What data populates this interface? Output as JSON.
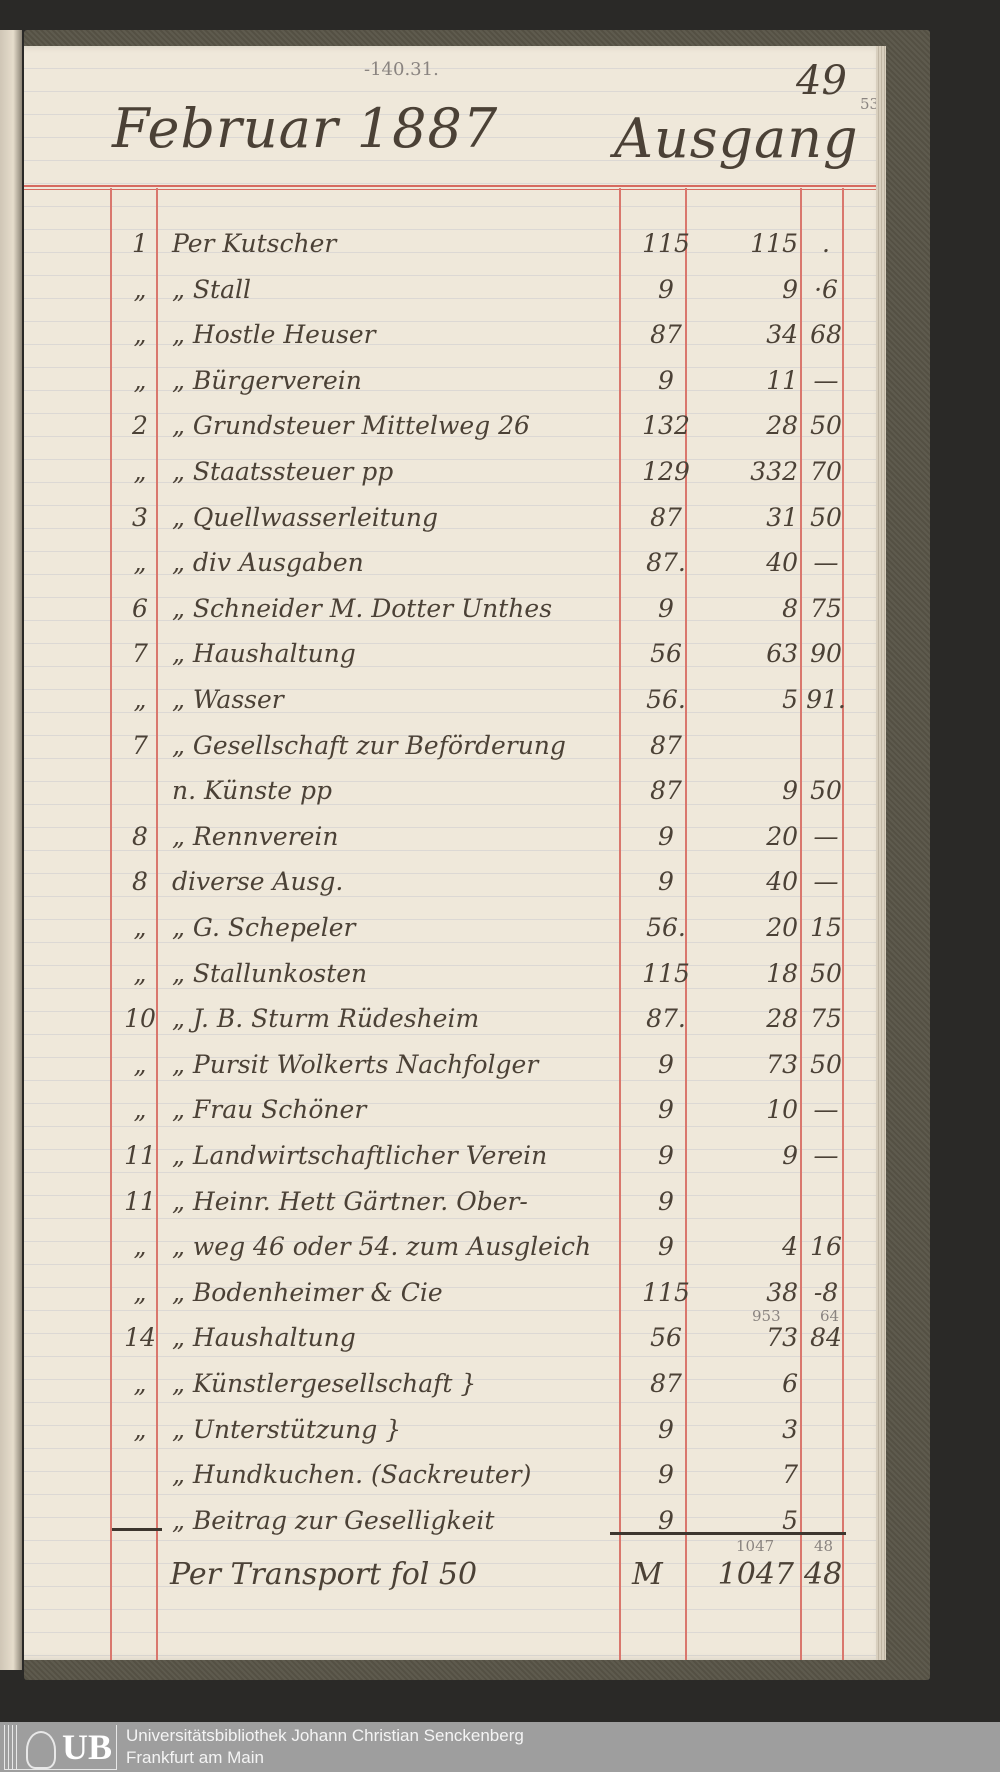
{
  "header": {
    "month_year": "Februar 1887",
    "section": "Ausgang",
    "pencil_note": "-140.31.",
    "page_number": "49",
    "page_number_pencil": "53"
  },
  "ledger": {
    "rows": [
      {
        "date": "1",
        "description": "Per Kutscher",
        "folio": "115",
        "mark": "115",
        "pfennig": "."
      },
      {
        "date": "„",
        "description": "„ Stall",
        "folio": "9",
        "mark": "9",
        "pfennig": "·6"
      },
      {
        "date": "„",
        "description": "„ Hostle Heuser",
        "folio": "87",
        "mark": "34",
        "pfennig": "68"
      },
      {
        "date": "„",
        "description": "„ Bürgerverein",
        "folio": "9",
        "mark": "11",
        "pfennig": "—"
      },
      {
        "date": "2",
        "description": "„ Grundsteuer Mittelweg 26",
        "folio": "132",
        "mark": "28",
        "pfennig": "50"
      },
      {
        "date": "„",
        "description": "„ Staatssteuer pp",
        "folio": "129",
        "mark": "332",
        "pfennig": "70"
      },
      {
        "date": "3",
        "description": "„ Quellwasserleitung",
        "folio": "87",
        "mark": "31",
        "pfennig": "50"
      },
      {
        "date": "„",
        "description": "„ div Ausgaben",
        "folio": "87.",
        "mark": "40",
        "pfennig": "—"
      },
      {
        "date": "6",
        "description": "„ Schneider M. Dotter Unthes",
        "folio": "9",
        "mark": "8",
        "pfennig": "75"
      },
      {
        "date": "7",
        "description": "„ Haushaltung",
        "folio": "56",
        "mark": "63",
        "pfennig": "90"
      },
      {
        "date": "„",
        "description": "„ Wasser",
        "folio": "56.",
        "mark": "5",
        "pfennig": "91."
      },
      {
        "date": "7",
        "description": "„ Gesellschaft zur Beförderung",
        "folio": "87",
        "mark": "",
        "pfennig": ""
      },
      {
        "date": "",
        "description": "n. Künste pp",
        "folio": "87",
        "mark": "9",
        "pfennig": "50"
      },
      {
        "date": "8",
        "description": "„ Rennverein",
        "folio": "9",
        "mark": "20",
        "pfennig": "—"
      },
      {
        "date": "8",
        "description": "diverse Ausg.",
        "folio": "9",
        "mark": "40",
        "pfennig": "—"
      },
      {
        "date": "„",
        "description": "„ G. Schepeler",
        "folio": "56.",
        "mark": "20",
        "pfennig": "15"
      },
      {
        "date": "„",
        "description": "„ Stallunkosten",
        "folio": "115",
        "mark": "18",
        "pfennig": "50"
      },
      {
        "date": "10",
        "description": "„ J. B. Sturm Rüdesheim",
        "folio": "87.",
        "mark": "28",
        "pfennig": "75"
      },
      {
        "date": "„",
        "description": "„ Pursit Wolkerts Nachfolger",
        "folio": "9",
        "mark": "73",
        "pfennig": "50"
      },
      {
        "date": "„",
        "description": "„ Frau Schöner",
        "folio": "9",
        "mark": "10",
        "pfennig": "—"
      },
      {
        "date": "11",
        "description": "„ Landwirtschaftlicher Verein",
        "folio": "9",
        "mark": "9",
        "pfennig": "—"
      },
      {
        "date": "11",
        "description": "„ Heinr. Hett Gärtner. Ober-",
        "folio": "9",
        "mark": "",
        "pfennig": ""
      },
      {
        "date": "„",
        "description": "„ weg 46 oder 54. zum Ausgleich",
        "folio": "9",
        "mark": "4",
        "pfennig": "16"
      },
      {
        "date": "„",
        "description": "„ Bodenheimer & Cie",
        "folio": "115",
        "mark": "38",
        "pfennig": "-8"
      },
      {
        "date": "14",
        "description": "„ Haushaltung",
        "folio": "56",
        "mark": "73",
        "pfennig": "84"
      },
      {
        "date": "„",
        "description": "„ Künstlergesellschaft }",
        "folio": "87",
        "mark": "6",
        "pfennig": ""
      },
      {
        "date": "„",
        "description": "„ Unterstützung }",
        "folio": "9",
        "mark": "3",
        "pfennig": ""
      },
      {
        "date": "",
        "description": "„ Hundkuchen. (Sackreuter)",
        "folio": "9",
        "mark": "7",
        "pfennig": ""
      },
      {
        "date": "",
        "description": "„ Beitrag zur Geselligkeit",
        "folio": "9",
        "mark": "5",
        "pfennig": ""
      }
    ],
    "haushaltung_correction": {
      "mark": "953",
      "pfennig": "64"
    },
    "total": {
      "description": "Per Transport fol 50",
      "currency": "M",
      "mark": "1047",
      "pfennig": "48",
      "pencil_mark": "1047",
      "pencil_pfennig": "48"
    }
  },
  "footer": {
    "logo": "UB",
    "institution": "Universitätsbibliothek Johann Christian Senckenberg",
    "city": "Frankfurt am Main"
  },
  "colors": {
    "ink": "#4b4136",
    "rule_red": "#d66a60",
    "paper": "#efe8da",
    "cover": "#585447",
    "footer": "#9e9e9e"
  }
}
